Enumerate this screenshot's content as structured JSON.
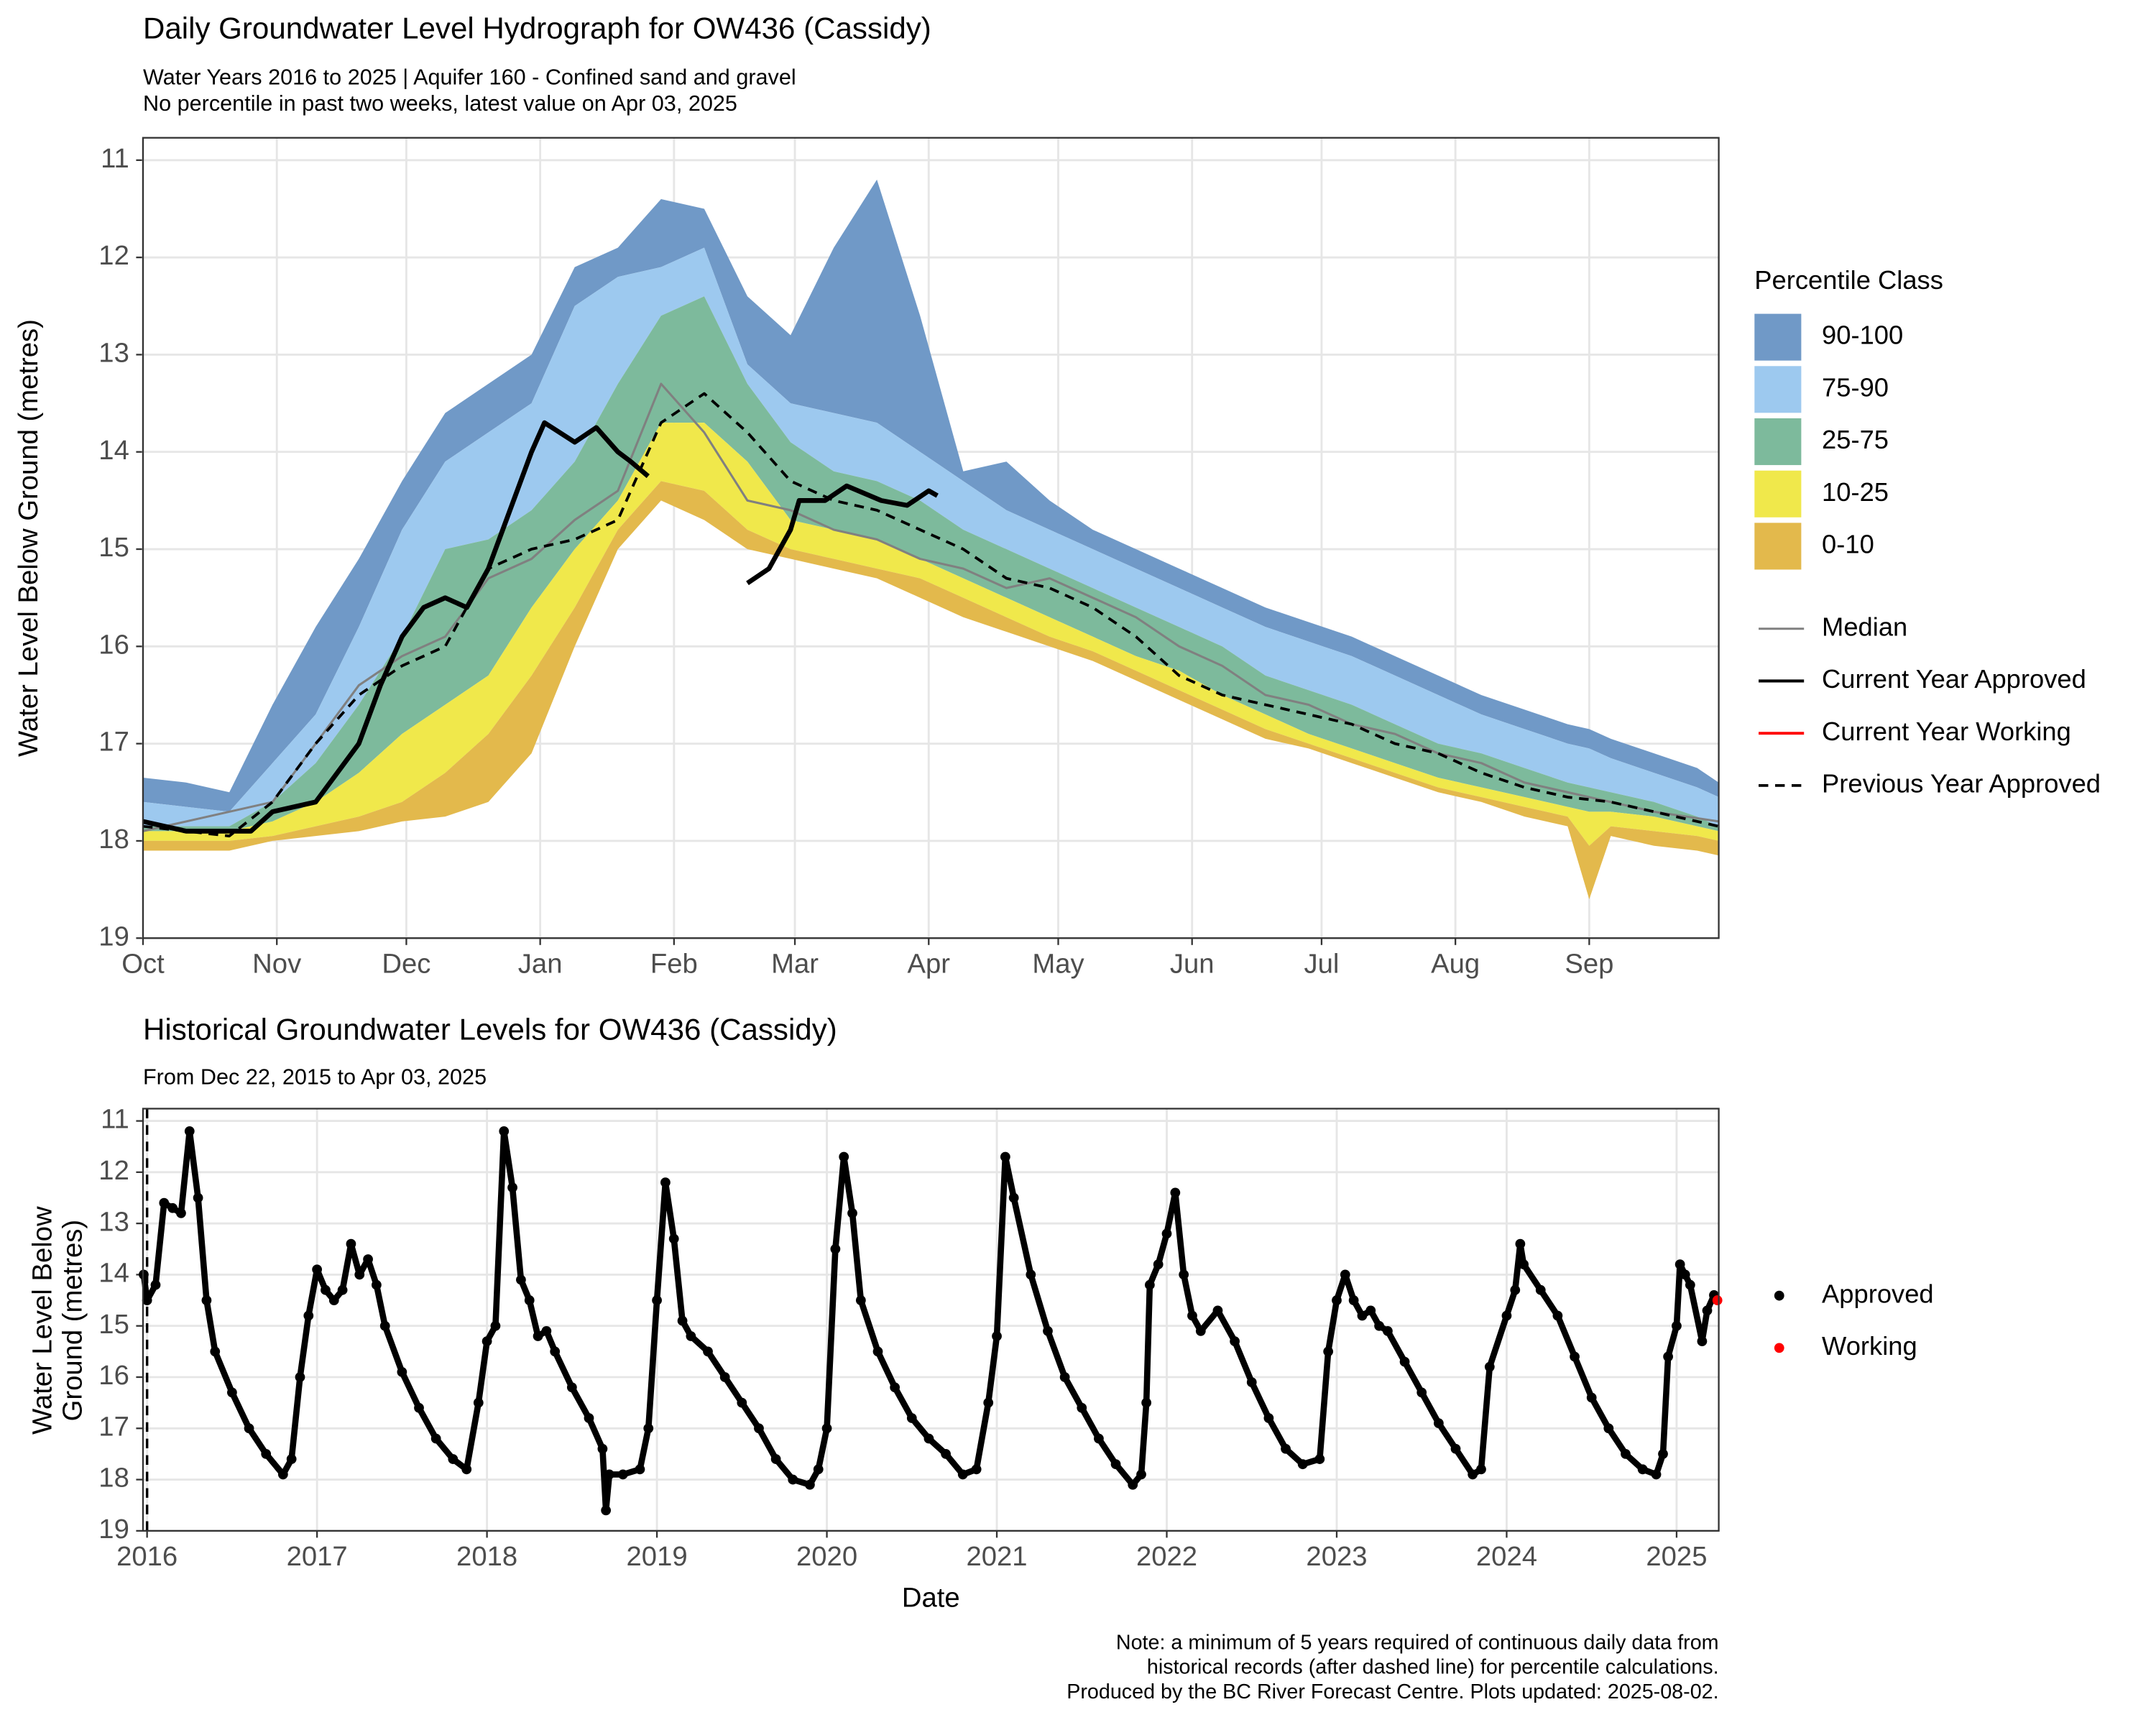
{
  "chart_data": [
    {
      "type": "area",
      "title": "Daily Groundwater Level Hydrograph for OW436 (Cassidy)",
      "subtitle": [
        "Water Years 2016 to 2025 | Aquifer 160 - Confined sand and gravel",
        "No percentile in past two weeks, latest value on Apr 03, 2025"
      ],
      "y_label": "Water Level Below Ground (metres)",
      "legend_title": "Percentile Class",
      "legend": "right",
      "grid": true,
      "y_reversed": true,
      "xlim": [
        0,
        365
      ],
      "xticks": [
        {
          "value": 0,
          "label": "Oct"
        },
        {
          "value": 31,
          "label": "Nov"
        },
        {
          "value": 61,
          "label": "Dec"
        },
        {
          "value": 92,
          "label": "Jan"
        },
        {
          "value": 123,
          "label": "Feb"
        },
        {
          "value": 151,
          "label": "Mar"
        },
        {
          "value": 182,
          "label": "Apr"
        },
        {
          "value": 212,
          "label": "May"
        },
        {
          "value": 243,
          "label": "Jun"
        },
        {
          "value": 273,
          "label": "Jul"
        },
        {
          "value": 304,
          "label": "Aug"
        },
        {
          "value": 335,
          "label": "Sep"
        }
      ],
      "ylim": [
        10.77,
        19
      ],
      "yticks": [
        11,
        12,
        13,
        14,
        15,
        16,
        17,
        18,
        19
      ],
      "x": [
        0,
        10,
        20,
        30,
        40,
        50,
        60,
        70,
        80,
        90,
        100,
        110,
        120,
        130,
        140,
        150,
        160,
        170,
        180,
        190,
        200,
        210,
        220,
        230,
        240,
        250,
        260,
        270,
        280,
        290,
        300,
        310,
        320,
        330,
        335,
        340,
        350,
        360,
        365
      ],
      "bands": [
        {
          "name": "90-100",
          "color": "#7099c7",
          "top": [
            17.35,
            17.4,
            17.5,
            16.6,
            15.8,
            15.1,
            14.3,
            13.6,
            13.3,
            13.0,
            12.1,
            11.9,
            11.4,
            11.5,
            12.4,
            12.8,
            11.9,
            11.2,
            12.6,
            14.2,
            14.1,
            14.5,
            14.8,
            15.0,
            15.2,
            15.4,
            15.6,
            15.75,
            15.9,
            16.1,
            16.3,
            16.5,
            16.65,
            16.8,
            16.85,
            16.95,
            17.1,
            17.25,
            17.4
          ]
        },
        {
          "name": "75-90",
          "color": "#9dc9ef",
          "top": [
            17.6,
            17.65,
            17.7,
            17.2,
            16.7,
            15.8,
            14.8,
            14.1,
            13.8,
            13.5,
            12.5,
            12.2,
            12.1,
            11.9,
            13.1,
            13.5,
            13.6,
            13.7,
            14.0,
            14.3,
            14.6,
            14.8,
            15.0,
            15.2,
            15.4,
            15.6,
            15.8,
            15.95,
            16.1,
            16.3,
            16.5,
            16.7,
            16.85,
            17.0,
            17.05,
            17.15,
            17.3,
            17.45,
            17.55
          ]
        },
        {
          "name": "25-75",
          "color": "#7dba9c",
          "top": [
            17.85,
            17.85,
            17.85,
            17.6,
            17.2,
            16.6,
            15.9,
            15.0,
            14.9,
            14.6,
            14.1,
            13.3,
            12.6,
            12.4,
            13.3,
            13.9,
            14.2,
            14.3,
            14.5,
            14.8,
            15.0,
            15.2,
            15.4,
            15.6,
            15.8,
            16.0,
            16.3,
            16.45,
            16.6,
            16.8,
            17.0,
            17.1,
            17.25,
            17.4,
            17.45,
            17.5,
            17.6,
            17.75,
            17.85
          ]
        },
        {
          "name": "10-25",
          "color": "#f0e84b",
          "top": [
            17.9,
            17.9,
            17.9,
            17.8,
            17.6,
            17.3,
            16.9,
            16.6,
            16.3,
            15.6,
            15.0,
            14.5,
            13.7,
            13.7,
            14.1,
            14.7,
            14.8,
            14.9,
            15.1,
            15.3,
            15.5,
            15.7,
            15.9,
            16.1,
            16.25,
            16.5,
            16.7,
            16.9,
            17.05,
            17.2,
            17.35,
            17.45,
            17.55,
            17.65,
            17.7,
            17.7,
            17.75,
            17.85,
            17.9
          ]
        },
        {
          "name": "0-10",
          "color": "#e3b94c",
          "top": [
            18.0,
            18.0,
            18.0,
            17.95,
            17.85,
            17.75,
            17.6,
            17.3,
            16.9,
            16.3,
            15.6,
            14.8,
            14.3,
            14.4,
            14.8,
            15.0,
            15.1,
            15.2,
            15.3,
            15.5,
            15.7,
            15.9,
            16.05,
            16.25,
            16.45,
            16.65,
            16.85,
            17.0,
            17.15,
            17.3,
            17.45,
            17.55,
            17.65,
            17.75,
            18.05,
            17.85,
            17.9,
            17.95,
            18.0
          ],
          "bottom": [
            18.1,
            18.1,
            18.1,
            18.0,
            17.95,
            17.9,
            17.8,
            17.75,
            17.6,
            17.1,
            16.0,
            15.0,
            14.5,
            14.7,
            15.0,
            15.1,
            15.2,
            15.3,
            15.5,
            15.7,
            15.85,
            16.0,
            16.15,
            16.35,
            16.55,
            16.75,
            16.95,
            17.05,
            17.2,
            17.35,
            17.5,
            17.6,
            17.75,
            17.85,
            18.6,
            17.95,
            18.05,
            18.1,
            18.15
          ]
        }
      ],
      "lines": [
        {
          "name": "Median",
          "color": "#808080",
          "dash": false,
          "width": 1.6,
          "x": [
            0,
            30,
            40,
            50,
            60,
            70,
            80,
            90,
            100,
            110,
            120,
            130,
            140,
            150,
            160,
            170,
            180,
            190,
            200,
            210,
            220,
            230,
            240,
            250,
            260,
            270,
            280,
            290,
            300,
            310,
            320,
            330,
            340,
            350,
            365
          ],
          "values": [
            17.9,
            17.6,
            17.0,
            16.4,
            16.1,
            15.9,
            15.3,
            15.1,
            14.7,
            14.4,
            13.3,
            13.8,
            14.5,
            14.6,
            14.8,
            14.9,
            15.1,
            15.2,
            15.4,
            15.3,
            15.5,
            15.7,
            16.0,
            16.2,
            16.5,
            16.6,
            16.8,
            16.9,
            17.1,
            17.2,
            17.4,
            17.5,
            17.6,
            17.7,
            17.8
          ]
        },
        {
          "name": "Current Year Approved",
          "color": "#000000",
          "dash": false,
          "width": 3.5,
          "x": [
            0,
            10,
            20,
            25,
            30,
            40,
            45,
            50,
            55,
            60,
            65,
            70,
            75,
            80,
            85,
            90,
            93,
            100,
            105,
            110,
            113,
            117,
            128,
            140,
            145,
            150,
            152,
            158,
            163,
            171,
            177,
            182,
            184
          ],
          "values": [
            17.8,
            17.9,
            17.9,
            17.9,
            17.7,
            17.6,
            17.3,
            17.0,
            16.4,
            15.9,
            15.6,
            15.5,
            15.6,
            15.2,
            14.6,
            14.0,
            13.7,
            13.9,
            13.75,
            14.0,
            14.1,
            14.25,
            null,
            15.35,
            15.2,
            14.8,
            14.5,
            14.5,
            14.35,
            14.5,
            14.55,
            14.4,
            14.45
          ]
        },
        {
          "name": "Current Year Working",
          "color": "#ff0000",
          "dash": false,
          "width": 2,
          "x": [],
          "values": []
        },
        {
          "name": "Previous Year Approved",
          "color": "#000000",
          "dash": true,
          "width": 2,
          "x": [
            0,
            20,
            30,
            40,
            50,
            60,
            70,
            80,
            90,
            100,
            110,
            120,
            130,
            140,
            150,
            160,
            170,
            180,
            190,
            200,
            210,
            220,
            230,
            240,
            250,
            260,
            270,
            280,
            290,
            300,
            310,
            320,
            330,
            340,
            350,
            365
          ],
          "values": [
            17.85,
            17.95,
            17.6,
            17.0,
            16.5,
            16.2,
            16.0,
            15.2,
            15.0,
            14.9,
            14.7,
            13.7,
            13.4,
            13.8,
            14.3,
            14.5,
            14.6,
            14.8,
            15.0,
            15.3,
            15.4,
            15.6,
            15.9,
            16.3,
            16.5,
            16.6,
            16.7,
            16.8,
            17.0,
            17.1,
            17.3,
            17.45,
            17.55,
            17.6,
            17.7,
            17.85
          ]
        }
      ]
    },
    {
      "type": "scatter",
      "title": "Historical Groundwater Levels for OW436 (Cassidy)",
      "subtitle": [
        "From Dec 22, 2015 to Apr 03, 2025"
      ],
      "y_label": [
        "Water Level Below",
        "Ground (metres)"
      ],
      "x_label": "Date",
      "legend": "right",
      "grid": true,
      "y_reversed": true,
      "xlim": [
        2015.976,
        2025.248
      ],
      "xticks": [
        2016,
        2017,
        2018,
        2019,
        2020,
        2021,
        2022,
        2023,
        2024,
        2025
      ],
      "ylim": [
        10.76,
        19
      ],
      "yticks": [
        11,
        12,
        13,
        14,
        15,
        16,
        17,
        18,
        19
      ],
      "reference_line_x": 2016.0,
      "series": [
        {
          "name": "Approved",
          "color": "#000000",
          "x": [
            2015.98,
            2016.0,
            2016.05,
            2016.1,
            2016.15,
            2016.2,
            2016.25,
            2016.3,
            2016.35,
            2016.4,
            2016.5,
            2016.6,
            2016.7,
            2016.8,
            2016.85,
            2016.9,
            2016.95,
            2017.0,
            2017.05,
            2017.1,
            2017.15,
            2017.2,
            2017.25,
            2017.3,
            2017.35,
            2017.4,
            2017.5,
            2017.6,
            2017.7,
            2017.8,
            2017.88,
            2017.95,
            2018.0,
            2018.05,
            2018.1,
            2018.15,
            2018.2,
            2018.25,
            2018.3,
            2018.35,
            2018.4,
            2018.5,
            2018.6,
            2018.68,
            2018.7,
            2018.72,
            2018.8,
            2018.9,
            2018.95,
            2019.0,
            2019.05,
            2019.1,
            2019.15,
            2019.2,
            2019.3,
            2019.4,
            2019.5,
            2019.6,
            2019.7,
            2019.8,
            2019.9,
            2019.95,
            2020.0,
            2020.05,
            2020.1,
            2020.15,
            2020.2,
            2020.3,
            2020.4,
            2020.5,
            2020.6,
            2020.7,
            2020.8,
            2020.88,
            2020.95,
            2021.0,
            2021.05,
            2021.1,
            2021.2,
            2021.3,
            2021.4,
            2021.5,
            2021.6,
            2021.7,
            2021.8,
            2021.85,
            2021.88,
            2021.9,
            2021.95,
            2022.0,
            2022.05,
            2022.1,
            2022.15,
            2022.2,
            2022.3,
            2022.4,
            2022.5,
            2022.6,
            2022.7,
            2022.8,
            2022.9,
            2022.95,
            2023.0,
            2023.05,
            2023.1,
            2023.15,
            2023.2,
            2023.25,
            2023.3,
            2023.4,
            2023.5,
            2023.6,
            2023.7,
            2023.8,
            2023.85,
            2023.9,
            2024.0,
            2024.05,
            2024.08,
            2024.1,
            2024.2,
            2024.3,
            2024.4,
            2024.5,
            2024.6,
            2024.7,
            2024.8,
            2024.88,
            2024.92,
            2024.95,
            2025.0,
            2025.02,
            2025.05,
            2025.08,
            2025.15,
            2025.18,
            2025.22
          ],
          "values": [
            14.0,
            14.5,
            14.2,
            12.6,
            12.7,
            12.8,
            11.2,
            12.5,
            14.5,
            15.5,
            16.3,
            17.0,
            17.5,
            17.9,
            17.6,
            16.0,
            14.8,
            13.9,
            14.3,
            14.5,
            14.3,
            13.4,
            14.0,
            13.7,
            14.2,
            15.0,
            15.9,
            16.6,
            17.2,
            17.6,
            17.8,
            16.5,
            15.3,
            15.0,
            11.2,
            12.3,
            14.1,
            14.5,
            15.2,
            15.1,
            15.5,
            16.2,
            16.8,
            17.4,
            18.6,
            17.9,
            17.9,
            17.8,
            17.0,
            14.5,
            12.2,
            13.3,
            14.9,
            15.2,
            15.5,
            16.0,
            16.5,
            17.0,
            17.6,
            18.0,
            18.1,
            17.8,
            17.0,
            13.5,
            11.7,
            12.8,
            14.5,
            15.5,
            16.2,
            16.8,
            17.2,
            17.5,
            17.9,
            17.8,
            16.5,
            15.2,
            11.7,
            12.5,
            14.0,
            15.1,
            16.0,
            16.6,
            17.2,
            17.7,
            18.1,
            17.9,
            16.5,
            14.2,
            13.8,
            13.2,
            12.4,
            14.0,
            14.8,
            15.1,
            14.7,
            15.3,
            16.1,
            16.8,
            17.4,
            17.7,
            17.6,
            15.5,
            14.5,
            14.0,
            14.5,
            14.8,
            14.7,
            15.0,
            15.1,
            15.7,
            16.3,
            16.9,
            17.4,
            17.9,
            17.8,
            15.8,
            14.8,
            14.3,
            13.4,
            13.8,
            14.3,
            14.8,
            15.6,
            16.4,
            17.0,
            17.5,
            17.8,
            17.9,
            17.5,
            15.6,
            15.0,
            13.8,
            14.0,
            14.2,
            15.3,
            14.7,
            14.4
          ]
        },
        {
          "name": "Working",
          "color": "#ff0000",
          "x": [
            2025.24
          ],
          "values": [
            14.5
          ]
        }
      ]
    }
  ],
  "note": [
    "Note: a minimum of 5 years required of continuous daily data from",
    "historical records (after dashed line) for percentile calculations.",
    "Produced by the BC River Forecast Centre. Plots updated: 2025-08-02."
  ]
}
